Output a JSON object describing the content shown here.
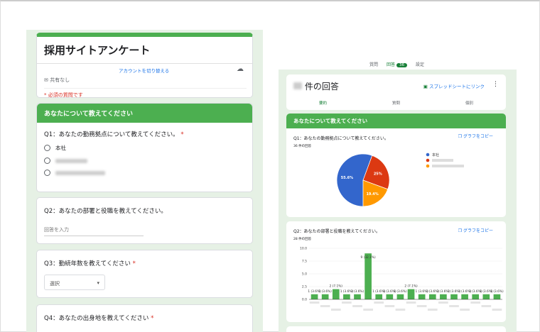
{
  "form": {
    "title": "採用サイトアンケート",
    "switch_account": "アカウントを切り替える",
    "sharing": "共有なし",
    "required_note": "* 必須の質問です",
    "section": "あなたについて教えてください",
    "q1": {
      "label": "Q1：あなたの勤務拠点について教えてください。",
      "required": "*",
      "options": [
        "本社"
      ]
    },
    "q2": {
      "label": "Q2：あなたの部署と役職を教えてください。",
      "placeholder": "回答を入力"
    },
    "q3": {
      "label": "Q3：勤続年数を教えてください",
      "required": "*",
      "select": "選択"
    },
    "q4": {
      "label": "Q4：あなたの出身地を教えてください",
      "required": "*"
    }
  },
  "top_tabs": {
    "questions": "質問",
    "responses": "回答",
    "responses_count": "36",
    "settings": "設定"
  },
  "responses": {
    "title_suffix": "件の回答",
    "sheet_link": "スプレッドシートにリンク",
    "tabs": [
      "要約",
      "質問",
      "個別"
    ],
    "section": "あなたについて教えてください",
    "copy_label": "グラフをコピー",
    "q1": {
      "label": "Q1：あなたの勤務拠点について教えてください。",
      "count": "36 件の回答"
    },
    "q2": {
      "label": "Q2：あなたの部署と役職を教えてください。",
      "count": "28 件の回答"
    }
  },
  "chart_data": [
    {
      "type": "pie",
      "slices": [
        {
          "name": "本社",
          "value": 55.6,
          "color": "#3366cc"
        },
        {
          "name": "",
          "value": 25,
          "color": "#dc3912"
        },
        {
          "name": "",
          "value": 19.4,
          "color": "#ff9900"
        }
      ],
      "labels": [
        "55.6%",
        "25%",
        "19.4%"
      ],
      "legend": "right"
    },
    {
      "type": "bar",
      "values": [
        1,
        1,
        2,
        1,
        1,
        9,
        1,
        1,
        1,
        2,
        1,
        1,
        1,
        1,
        1,
        1,
        1,
        1
      ],
      "labels": [
        "1 (3.6%)",
        "1 (3.6%)",
        "2 (7.1%)",
        "1 (3.6%)",
        "1 (3.6%)",
        "9 (32.1%)",
        "1 (3.6%)",
        "1 (3.6%)",
        "1 (3.6%)",
        "2 (7.1%)",
        "1 (3.6%)",
        "1 (3.6%)",
        "1 (3.6%)",
        "1 (3.6%)",
        "1 (3.6%)",
        "1 (3.6%)",
        "1 (3.6%)",
        "1 (3.6%)"
      ],
      "yticks": [
        "0.0",
        "2.5",
        "5.0",
        "7.5",
        "10.0"
      ],
      "ylim": [
        0,
        10
      ],
      "grid": true,
      "color": "#4caf50"
    }
  ]
}
